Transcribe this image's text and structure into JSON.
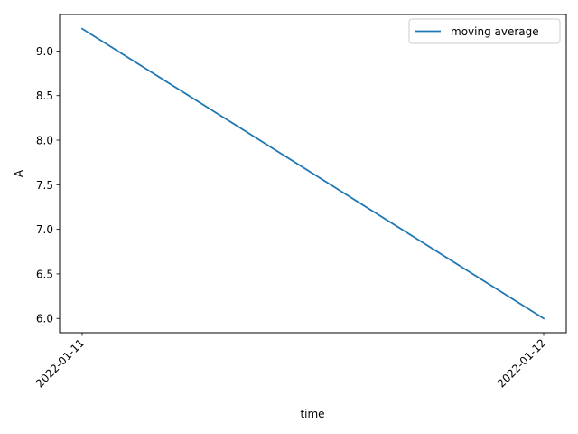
{
  "chart_data": {
    "type": "line",
    "title": "",
    "xlabel": "time",
    "ylabel": "A",
    "x": [
      "2022-01-11",
      "2022-01-12"
    ],
    "x_ticks": [
      "2022-01-11",
      "2022-01-12"
    ],
    "ylim": [
      5.84,
      9.41
    ],
    "y_ticks": [
      6.0,
      6.5,
      7.0,
      7.5,
      8.0,
      8.5,
      9.0
    ],
    "y_tick_labels": [
      "6.0",
      "6.5",
      "7.0",
      "7.5",
      "8.0",
      "8.5",
      "9.0"
    ],
    "grid": false,
    "legend_position": "top-right",
    "series": [
      {
        "name": "moving average",
        "color": "#1f77b4",
        "values": [
          9.25,
          6.0
        ]
      }
    ]
  }
}
